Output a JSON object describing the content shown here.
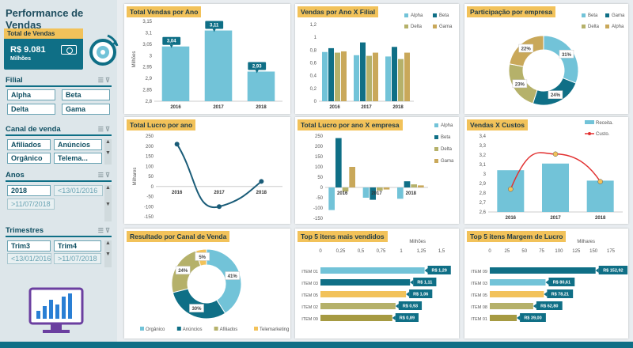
{
  "page": {
    "title": "Performance de Vendas"
  },
  "kpi": {
    "label": "Total de Vendas",
    "value": "R$ 9.081",
    "unit": "Milhões"
  },
  "slicers": {
    "filial": {
      "title": "Filial",
      "items": [
        "Alpha",
        "Beta",
        "Delta",
        "Gama"
      ]
    },
    "canal": {
      "title": "Canal de venda",
      "items": [
        "Afiliados",
        "Anúncios",
        "Orgânico",
        "Telema..."
      ]
    },
    "anos": {
      "title": "Anos",
      "items": [
        "2018",
        "<13/01/2016",
        ">11/07/2018"
      ]
    },
    "trimestres": {
      "title": "Trimestres",
      "items": [
        "Trim3",
        "Trim4",
        "<13/01/2016",
        ">11/07/2018"
      ]
    }
  },
  "colors": {
    "teal_dark": "#0f6f86",
    "blue_light": "#72c3d8",
    "yellow": "#f2c25a",
    "olive": "#b5b16a",
    "gold": "#c9a85a",
    "red": "#e23030",
    "title_bg": "#f2c25a"
  },
  "chart_data": [
    {
      "id": "vendas_ano",
      "type": "bar",
      "title": "Total Vendas por Ano",
      "ylabel": "Milhões",
      "categories": [
        "2016",
        "2017",
        "2018"
      ],
      "values": [
        3.04,
        3.11,
        2.93
      ],
      "data_labels": [
        "3,04",
        "3,11",
        "2,93"
      ],
      "ylim": [
        2.8,
        3.15
      ],
      "yticks": [
        "2,8",
        "2,85",
        "2,9",
        "2,95",
        "3",
        "3,05",
        "3,1",
        "3,15"
      ],
      "grid": false
    },
    {
      "id": "vendas_filial",
      "type": "bar",
      "title": "Vendas por Ano X Filial",
      "categories": [
        "2016",
        "2017",
        "2018"
      ],
      "series": [
        {
          "name": "Alpha",
          "values": [
            0.77,
            0.72,
            0.7
          ]
        },
        {
          "name": "Beta",
          "values": [
            0.83,
            0.92,
            0.85
          ]
        },
        {
          "name": "Delta",
          "values": [
            0.76,
            0.71,
            0.66
          ]
        },
        {
          "name": "Gama",
          "values": [
            0.78,
            0.76,
            0.76
          ]
        }
      ],
      "ylim": [
        0,
        1.2
      ],
      "yticks": [
        "0",
        "0,2",
        "0,4",
        "0,6",
        "0,8",
        "1",
        "1,2"
      ],
      "legend": "top-right"
    },
    {
      "id": "participacao",
      "type": "pie",
      "title": "Participação por empresa",
      "categories": [
        "Beta",
        "Gama",
        "Delta",
        "Alpha"
      ],
      "values": [
        31,
        24,
        23,
        22
      ],
      "data_labels": [
        "31%",
        "24%",
        "23%",
        "22%"
      ],
      "legend": "top"
    },
    {
      "id": "lucro_ano",
      "type": "line",
      "title": "Total Lucro por ano",
      "ylabel": "Milhares",
      "categories": [
        "2016",
        "2017",
        "2018"
      ],
      "values": [
        210,
        -100,
        25
      ],
      "ylim": [
        -150,
        250
      ],
      "yticks": [
        "-150",
        "-100",
        "-50",
        "0",
        "50",
        "100",
        "150",
        "200",
        "250"
      ]
    },
    {
      "id": "lucro_empresa",
      "type": "bar",
      "title": "Total Lucro por ano X empresa",
      "categories": [
        "2016",
        "2017",
        "2018"
      ],
      "series": [
        {
          "name": "Alpha",
          "values": [
            -110,
            -50,
            -55
          ]
        },
        {
          "name": "Beta",
          "values": [
            240,
            -60,
            30
          ]
        },
        {
          "name": "Delta",
          "values": [
            -20,
            -15,
            15
          ]
        },
        {
          "name": "Gama",
          "values": [
            100,
            -10,
            10
          ]
        }
      ],
      "ylim": [
        -150,
        250
      ],
      "yticks": [
        "-150",
        "-100",
        "-50",
        "0",
        "50",
        "100",
        "150",
        "200",
        "250"
      ],
      "legend": "top-right"
    },
    {
      "id": "vendas_custos",
      "type": "bar",
      "title": "Vendas X Custos",
      "categories": [
        "2016",
        "2017",
        "2018"
      ],
      "series": [
        {
          "name": "Receita.",
          "values": [
            3.04,
            3.11,
            2.93
          ]
        },
        {
          "name": "Custo.",
          "values": [
            2.84,
            3.21,
            2.92
          ]
        }
      ],
      "ylim": [
        2.6,
        3.4
      ],
      "yticks": [
        "2,6",
        "2,7",
        "2,8",
        "2,9",
        "3",
        "3,1",
        "3,2",
        "3,3",
        "3,4"
      ],
      "legend": "top-right"
    },
    {
      "id": "canal_venda",
      "type": "pie",
      "title": "Resultado por Canal de Venda",
      "categories": [
        "Orgânico",
        "Anúncios",
        "Afiliados",
        "Telemarketing"
      ],
      "values": [
        41,
        30,
        24,
        5
      ],
      "data_labels": [
        "41%",
        "30%",
        "24%",
        "5%"
      ],
      "legend": "bottom"
    },
    {
      "id": "top5_vendidos",
      "type": "bar",
      "title": "Top 5 itens mais vendidos",
      "xlabel": "Milhões",
      "categories": [
        "ITEM 01",
        "ITEM 03",
        "ITEM 05",
        "ITEM 02",
        "ITEM 09"
      ],
      "values": [
        1.29,
        1.11,
        1.06,
        0.93,
        0.89
      ],
      "data_labels": [
        "R$ 1,29",
        "R$ 1,11",
        "R$ 1,06",
        "R$ 0,93",
        "R$ 0,89"
      ],
      "xlim": [
        0,
        1.5
      ],
      "xticks": [
        "0",
        "0,25",
        "0,5",
        "0,75",
        "1",
        "1,25",
        "1,5"
      ]
    },
    {
      "id": "top5_margem",
      "type": "bar",
      "title": "Top 5 itens Margem de Lucro",
      "xlabel": "Milhares",
      "categories": [
        "ITEM 09",
        "ITEM 03",
        "ITEM 05",
        "ITEM 08",
        "ITEM 01"
      ],
      "values": [
        152.92,
        80.61,
        78.21,
        62.8,
        39.0
      ],
      "data_labels": [
        "R$ 152,92",
        "R$ 80,61",
        "R$ 78,21",
        "R$ 62,80",
        "R$ 39,00"
      ],
      "xlim": [
        0,
        175
      ],
      "xticks": [
        "0",
        "25",
        "50",
        "75",
        "100",
        "125",
        "150",
        "175"
      ]
    }
  ]
}
